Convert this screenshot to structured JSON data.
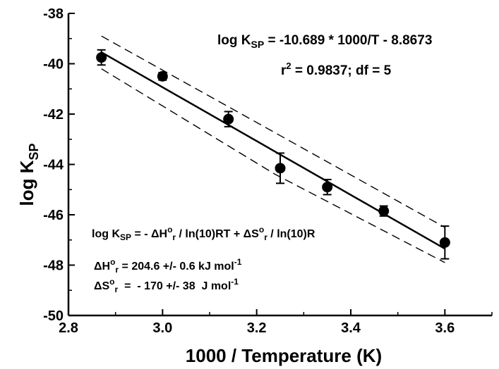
{
  "chart_data": {
    "type": "scatter",
    "xlabel": "1000 / Temperature (K)",
    "ylabel": {
      "main": "log K",
      "sub": "SP"
    },
    "xlim": [
      2.8,
      3.7
    ],
    "ylim": [
      -50,
      -38
    ],
    "xticks": [
      2.8,
      3.0,
      3.2,
      3.4,
      3.6
    ],
    "yticks": [
      -50,
      -48,
      -46,
      -44,
      -42,
      -40,
      -38
    ],
    "xtick_labels": [
      "2.8",
      "3.0",
      "3.2",
      "3.4",
      "3.6"
    ],
    "ytick_labels": [
      "-50",
      "-48",
      "-46",
      "-44",
      "-42",
      "-40",
      "-38"
    ],
    "grid": false,
    "points": [
      {
        "x": 2.87,
        "y": -39.75,
        "err": 0.3
      },
      {
        "x": 3.0,
        "y": -40.5,
        "err": 0.15
      },
      {
        "x": 3.14,
        "y": -42.2,
        "err": 0.3
      },
      {
        "x": 3.25,
        "y": -44.15,
        "err": 0.6
      },
      {
        "x": 3.35,
        "y": -44.9,
        "err": 0.3
      },
      {
        "x": 3.47,
        "y": -45.85,
        "err": 0.2
      },
      {
        "x": 3.6,
        "y": -47.1,
        "err": 0.65
      }
    ],
    "fit": {
      "slope": -10.689,
      "intercept": -8.8673,
      "x_range": [
        2.87,
        3.6
      ]
    },
    "confidence_band": {
      "upper": [
        [
          2.87,
          -38.9
        ],
        [
          3.24,
          -42.75
        ],
        [
          3.6,
          -46.5
        ]
      ],
      "lower": [
        [
          2.87,
          -40.2
        ],
        [
          3.24,
          -44.4
        ],
        [
          3.6,
          -47.9
        ]
      ]
    },
    "annotations": {
      "equation": {
        "prefix": "log K",
        "sub": "SP",
        "rest": " = -10.689 * 1000/T - 8.8673"
      },
      "stats": {
        "prefix": "r",
        "sup": "2",
        "rest": " = 0.9837; df = 5"
      },
      "vanthoff": {
        "t1": "log K",
        "s1": "SP",
        "t2": " = - ΔH",
        "p2": "o",
        "s2": "r",
        "t3": " / ln(10)RT + ΔS",
        "p3": "o",
        "s3": "r",
        "t4": " / ln(10)R"
      },
      "enthalpy": {
        "t1": "ΔH",
        "p1": "o",
        "s1": "r",
        "t2": " = 204.6 +/- 0.6 kJ mol",
        "p2": "-1"
      },
      "entropy": {
        "t1": "ΔS",
        "p1": "o",
        "s1": "r",
        "t2": "  =  - 170 +/- 38  J mol",
        "p2": "-1"
      }
    }
  }
}
